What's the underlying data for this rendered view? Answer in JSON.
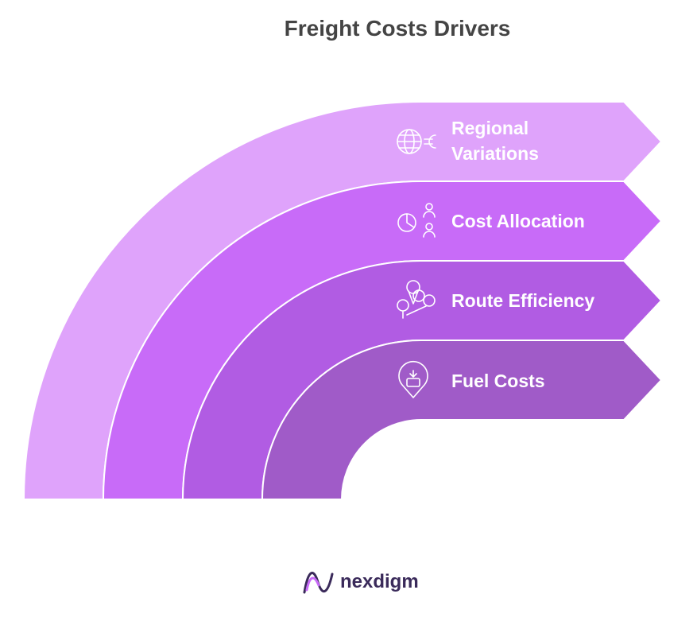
{
  "title": "Freight Costs Drivers",
  "items": [
    {
      "label": "Regional Variations"
    },
    {
      "label": "Cost Allocation"
    },
    {
      "label": "Route Efficiency"
    },
    {
      "label": "Fuel Costs"
    }
  ],
  "logo": {
    "text": "nexdigm"
  }
}
